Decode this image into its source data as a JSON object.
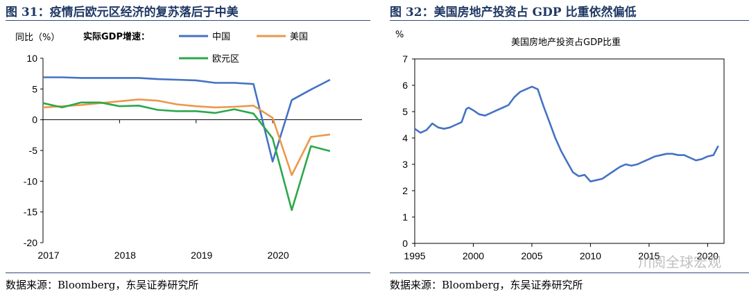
{
  "left": {
    "title": "图 31：疫情后欧元区经济的复苏落后于中美",
    "source": "数据来源：Bloomberg，东吴证券研究所"
  },
  "right": {
    "title": "图 32：美国房地产投资占 GDP 比重依然偏低",
    "source": "数据来源：Bloomberg，东吴证券研究所"
  },
  "watermark": "川阅全球宏观",
  "chart_data": [
    {
      "type": "line",
      "ylabel": "同比（%）",
      "legend_title": "实际GDP增速：",
      "ylim": [
        -20,
        10
      ],
      "yticks": [
        10,
        5,
        0,
        -5,
        -10,
        -15,
        -20
      ],
      "xlim": [
        2017.0,
        2020.95
      ],
      "xticks": [
        2017,
        2018,
        2019,
        2020
      ],
      "series": [
        {
          "name": "中国",
          "color": "#4472c4",
          "x": [
            2017.0,
            2017.25,
            2017.5,
            2017.75,
            2018.0,
            2018.25,
            2018.5,
            2018.75,
            2019.0,
            2019.25,
            2019.5,
            2019.75,
            2020.0,
            2020.25,
            2020.5,
            2020.75
          ],
          "values": [
            6.9,
            6.9,
            6.8,
            6.8,
            6.8,
            6.8,
            6.6,
            6.5,
            6.4,
            6.0,
            6.0,
            5.8,
            -6.8,
            3.2,
            4.9,
            6.5
          ]
        },
        {
          "name": "美国",
          "color": "#ed974a",
          "x": [
            2017.0,
            2017.25,
            2017.5,
            2017.75,
            2018.0,
            2018.25,
            2018.5,
            2018.75,
            2019.0,
            2019.25,
            2019.5,
            2019.75,
            2020.0,
            2020.25,
            2020.5,
            2020.75
          ],
          "values": [
            2.0,
            2.2,
            2.4,
            2.7,
            3.0,
            3.3,
            3.1,
            2.5,
            2.2,
            2.0,
            2.1,
            2.3,
            0.3,
            -9.0,
            -2.8,
            -2.4
          ]
        },
        {
          "name": "欧元区",
          "color": "#2aa84a",
          "x": [
            2017.0,
            2017.25,
            2017.5,
            2017.75,
            2018.0,
            2018.25,
            2018.5,
            2018.75,
            2019.0,
            2019.25,
            2019.5,
            2019.75,
            2020.0,
            2020.25,
            2020.5,
            2020.75
          ],
          "values": [
            2.7,
            2.0,
            2.8,
            2.8,
            2.2,
            2.3,
            1.6,
            1.4,
            1.4,
            1.1,
            1.7,
            1.0,
            -3.0,
            -14.7,
            -4.3,
            -5.1
          ]
        }
      ]
    },
    {
      "type": "line",
      "title": "美国房地产投资占GDP比重",
      "ylim": [
        0,
        7
      ],
      "yticks": [
        7,
        6,
        5,
        4,
        3,
        2,
        1,
        0
      ],
      "xlim": [
        1995,
        2021.4
      ],
      "xticks": [
        1995,
        2000,
        2005,
        2010,
        2015,
        2020
      ],
      "series": [
        {
          "name": "",
          "color": "#4472c4",
          "x": [
            1995.0,
            1995.5,
            1996.0,
            1996.5,
            1997.0,
            1997.5,
            1998.0,
            1998.5,
            1999.0,
            1999.4,
            1999.6,
            2000.0,
            2000.5,
            2001.0,
            2001.5,
            2002.0,
            2002.5,
            2003.0,
            2003.5,
            2004.0,
            2004.5,
            2005.0,
            2005.5,
            2006.0,
            2006.5,
            2007.0,
            2007.5,
            2008.0,
            2008.5,
            2009.0,
            2009.5,
            2010.0,
            2010.5,
            2011.0,
            2011.5,
            2012.0,
            2012.5,
            2013.0,
            2013.5,
            2014.0,
            2014.5,
            2015.0,
            2015.5,
            2016.0,
            2016.5,
            2017.0,
            2017.5,
            2018.0,
            2018.5,
            2019.0,
            2019.5,
            2020.0,
            2020.5,
            2020.9
          ],
          "values": [
            4.35,
            4.2,
            4.3,
            4.55,
            4.4,
            4.35,
            4.4,
            4.5,
            4.6,
            5.1,
            5.15,
            5.05,
            4.9,
            4.85,
            4.95,
            5.05,
            5.15,
            5.25,
            5.55,
            5.75,
            5.85,
            5.95,
            5.85,
            5.2,
            4.6,
            4.0,
            3.5,
            3.1,
            2.7,
            2.55,
            2.6,
            2.35,
            2.4,
            2.45,
            2.6,
            2.75,
            2.9,
            3.0,
            2.95,
            3.0,
            3.1,
            3.2,
            3.3,
            3.35,
            3.4,
            3.4,
            3.35,
            3.35,
            3.25,
            3.15,
            3.2,
            3.3,
            3.35,
            3.7
          ]
        }
      ]
    }
  ]
}
